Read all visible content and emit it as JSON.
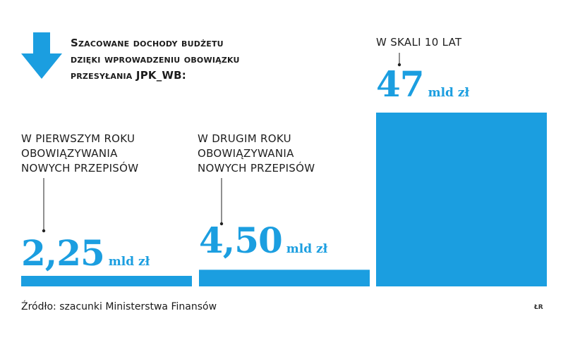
{
  "header": {
    "title_lines": [
      "Szacowane dochody budżetu",
      "dzięki wprowadzeniu obowiązku",
      "przesyłania JPK_WB:"
    ],
    "icon": "down-arrow-icon",
    "accent_color": "#1b9ee0"
  },
  "chart_data": {
    "type": "bar",
    "title": "Szacowane dochody budżetu dzięki wprowadzeniu obowiązku przesyłania JPK_WB:",
    "unit": "mld zł",
    "categories": [
      "W PIERWSZYM ROKU OBOWIĄZYWANIA NOWYCH PRZEPISÓW",
      "W DRUGIM ROKU OBOWIĄZYWANIA NOWYCH PRZEPISÓW",
      "W SKALI 10 LAT"
    ],
    "values": [
      2.25,
      4.5,
      47
    ],
    "value_labels": [
      "2,25",
      "4,50",
      "47"
    ],
    "ylim": [
      0,
      47
    ],
    "grid": false,
    "color": "#1b9ee0"
  },
  "columns": [
    {
      "label_lines": [
        "W PIERWSZYM ROKU",
        "OBOWIĄZYWANIA",
        "NOWYCH PRZEPISÓW"
      ],
      "value_text": "2,25",
      "unit_text": "mld zł"
    },
    {
      "label_lines": [
        "W DRUGIM ROKU",
        "OBOWIĄZYWANIA",
        "NOWYCH PRZEPISÓW"
      ],
      "value_text": "4,50",
      "unit_text": "mld zł"
    },
    {
      "label_lines": [
        "W SKALI 10 LAT"
      ],
      "value_text": "47",
      "unit_text": "mld zł"
    }
  ],
  "footer": {
    "source": "Źródło: szacunki Ministerstwa Finansów",
    "logo": "ŁR"
  }
}
